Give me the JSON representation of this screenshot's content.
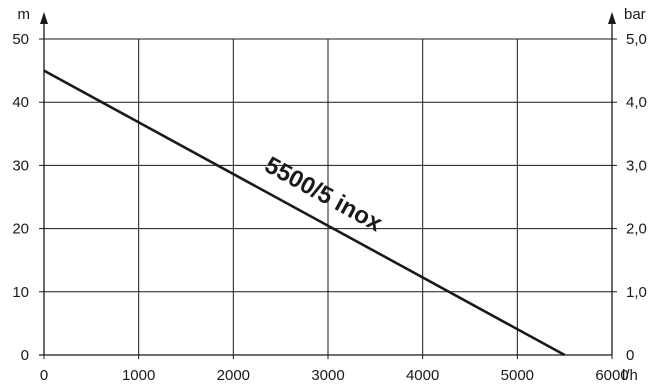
{
  "chart_data": {
    "type": "line",
    "xlabel": "l/h",
    "ylabel": "m",
    "y2label": "bar",
    "xlim": [
      0,
      6000
    ],
    "ylim": [
      0,
      50
    ],
    "y2lim": [
      0,
      5
    ],
    "x_ticks": [
      0,
      1000,
      2000,
      3000,
      4000,
      5000,
      6000
    ],
    "x_tick_labels": [
      "0",
      "1000",
      "2000",
      "3000",
      "4000",
      "5000",
      "6000"
    ],
    "y_ticks": [
      0,
      10,
      20,
      30,
      40,
      50
    ],
    "y_tick_labels": [
      "0",
      "10",
      "20",
      "30",
      "40",
      "50"
    ],
    "y2_ticks": [
      0,
      1,
      2,
      3,
      4,
      5
    ],
    "y2_tick_labels": [
      "0",
      "1,0",
      "2,0",
      "3,0",
      "4,0",
      "5,0"
    ],
    "grid": true,
    "series": [
      {
        "name": "5500/5 inox",
        "x": [
          0,
          5500
        ],
        "y": [
          45,
          0
        ]
      }
    ],
    "colors": {
      "line": "#1a1a1a",
      "grid": "#1a1a1a",
      "background": "#ffffff"
    }
  }
}
